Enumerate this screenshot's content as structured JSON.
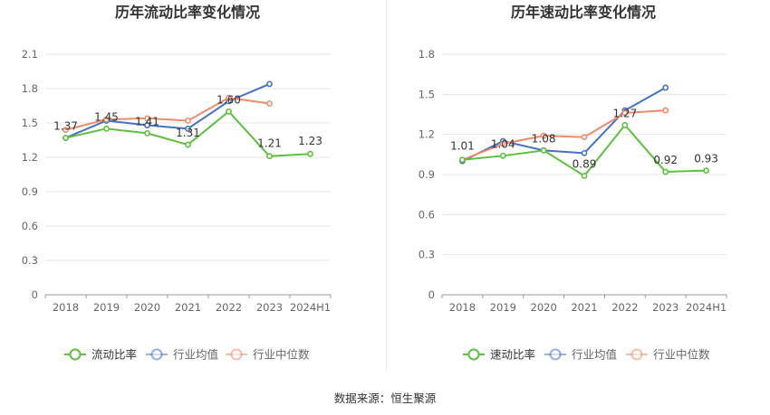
{
  "source_text": "数据来源：恒生聚源",
  "chart_data": [
    {
      "type": "line",
      "title": "历年流动比率变化情况",
      "categories": [
        "2018",
        "2019",
        "2020",
        "2021",
        "2022",
        "2023",
        "2024H1"
      ],
      "ylim": [
        0,
        2.1
      ],
      "yticks": [
        "0",
        "0.3",
        "0.6",
        "0.9",
        "1.2",
        "1.5",
        "1.8",
        "2.1"
      ],
      "grid": true,
      "legend_position": "bottom",
      "series": [
        {
          "name": "流动比率",
          "color": "#5cc13c",
          "values": [
            1.37,
            1.45,
            1.41,
            1.31,
            1.6,
            1.21,
            1.23
          ],
          "labels": [
            "1.37",
            "1.45",
            "1.41",
            "1.31",
            "1.60",
            "1.21",
            "1.23"
          ]
        },
        {
          "name": "行业均值",
          "color": "#4472c4",
          "values": [
            1.37,
            1.52,
            1.48,
            1.45,
            1.69,
            1.84,
            null
          ]
        },
        {
          "name": "行业中位数",
          "color": "#ed8b6a",
          "values": [
            1.44,
            1.53,
            1.54,
            1.52,
            1.72,
            1.67,
            null
          ]
        }
      ]
    },
    {
      "type": "line",
      "title": "历年速动比率变化情况",
      "categories": [
        "2018",
        "2019",
        "2020",
        "2021",
        "2022",
        "2023",
        "2024H1"
      ],
      "ylim": [
        0,
        1.8
      ],
      "yticks": [
        "0",
        "0.3",
        "0.6",
        "0.9",
        "1.2",
        "1.5",
        "1.8"
      ],
      "grid": true,
      "legend_position": "bottom",
      "series": [
        {
          "name": "速动比率",
          "color": "#5cc13c",
          "values": [
            1.01,
            1.04,
            1.08,
            0.89,
            1.27,
            0.92,
            0.93
          ],
          "labels": [
            "1.01",
            "1.04",
            "1.08",
            "0.89",
            "1.27",
            "0.92",
            "0.93"
          ]
        },
        {
          "name": "行业均值",
          "color": "#4472c4",
          "values": [
            1.0,
            1.15,
            1.08,
            1.06,
            1.38,
            1.55,
            null
          ]
        },
        {
          "name": "行业中位数",
          "color": "#ed8b6a",
          "values": [
            1.01,
            1.13,
            1.19,
            1.18,
            1.36,
            1.38,
            null
          ]
        }
      ]
    }
  ]
}
